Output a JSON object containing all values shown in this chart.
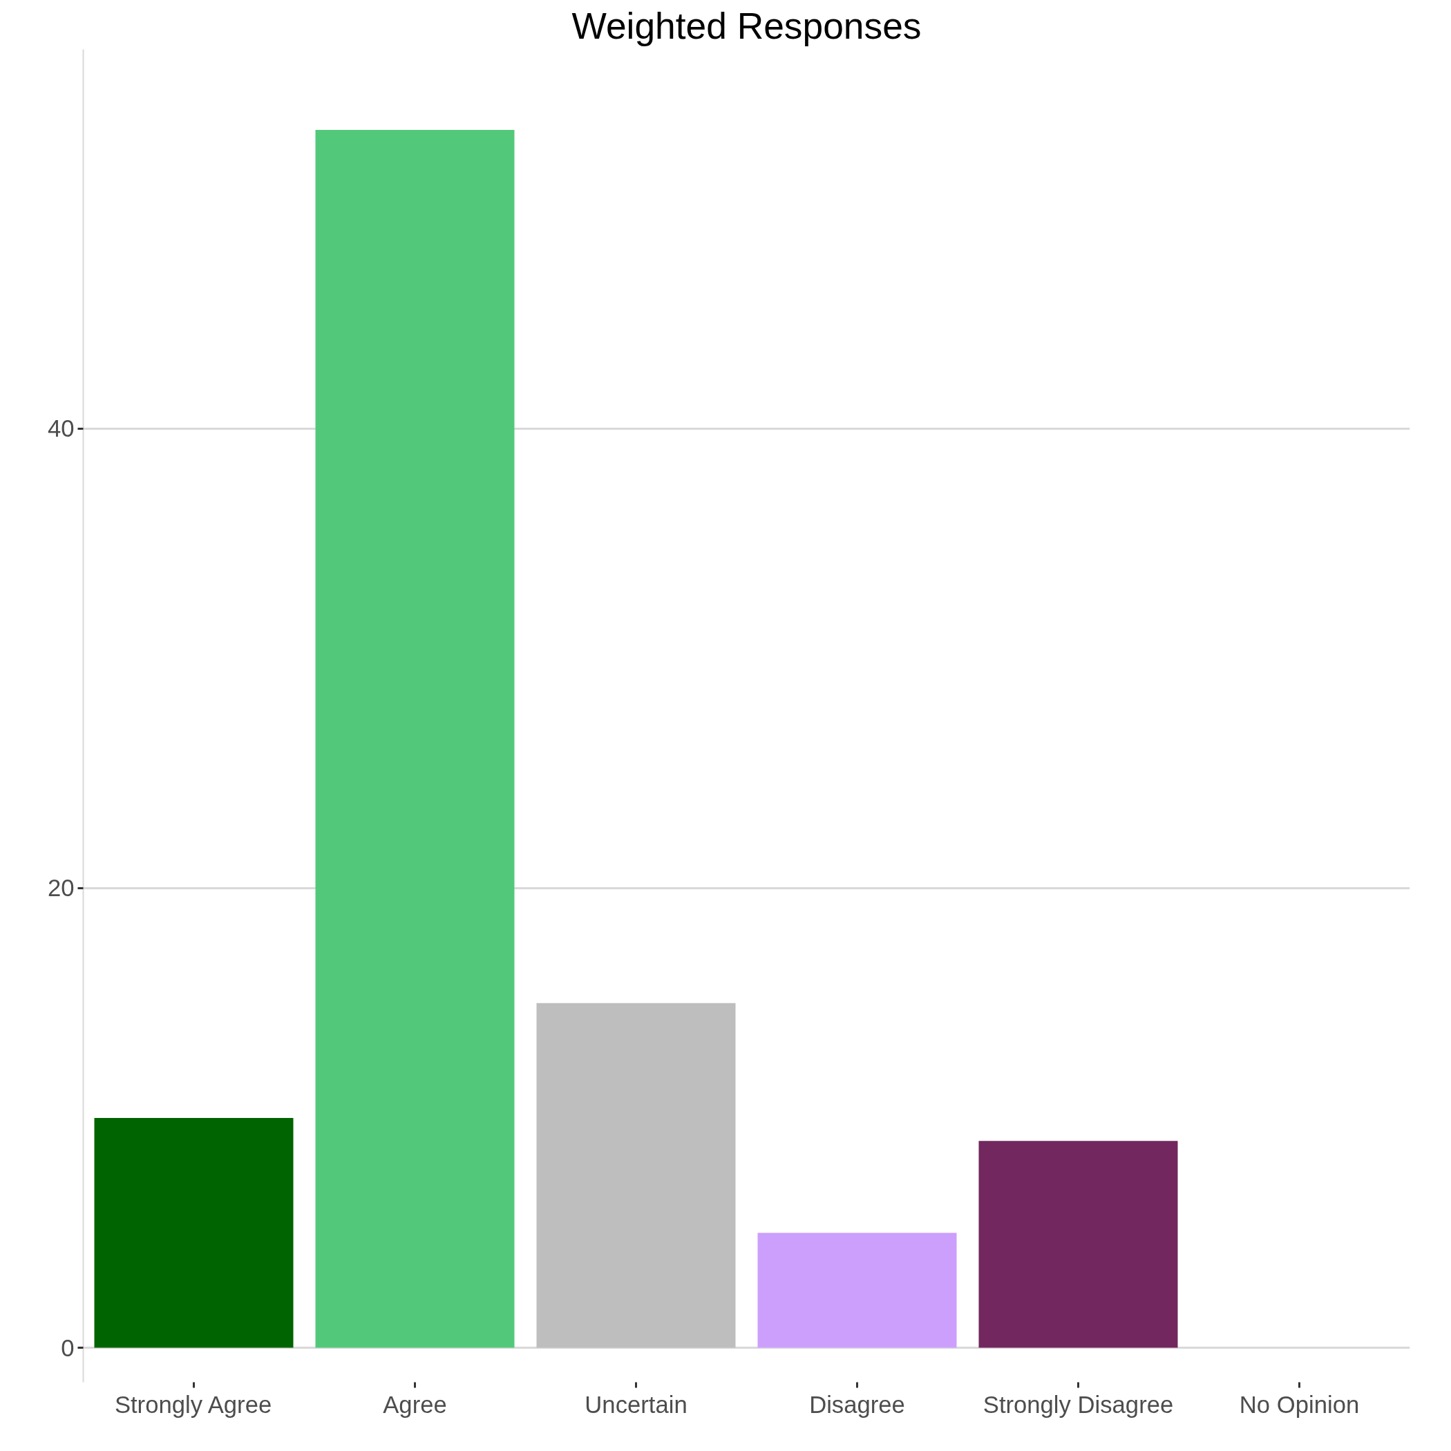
{
  "chart_data": {
    "type": "bar",
    "title": "Weighted Responses",
    "categories": [
      "Strongly Agree",
      "Agree",
      "Uncertain",
      "Disagree",
      "Strongly Disagree",
      "No Opinion"
    ],
    "values": [
      10,
      53,
      15,
      5,
      9,
      0
    ],
    "colors": [
      "#006400",
      "#52c97a",
      "#bebebe",
      "#cc9ffc",
      "#72275e",
      "#888888"
    ],
    "ylim": [
      -1.5,
      56.5
    ],
    "yticks": [
      0,
      20,
      40
    ],
    "grid": "y"
  }
}
